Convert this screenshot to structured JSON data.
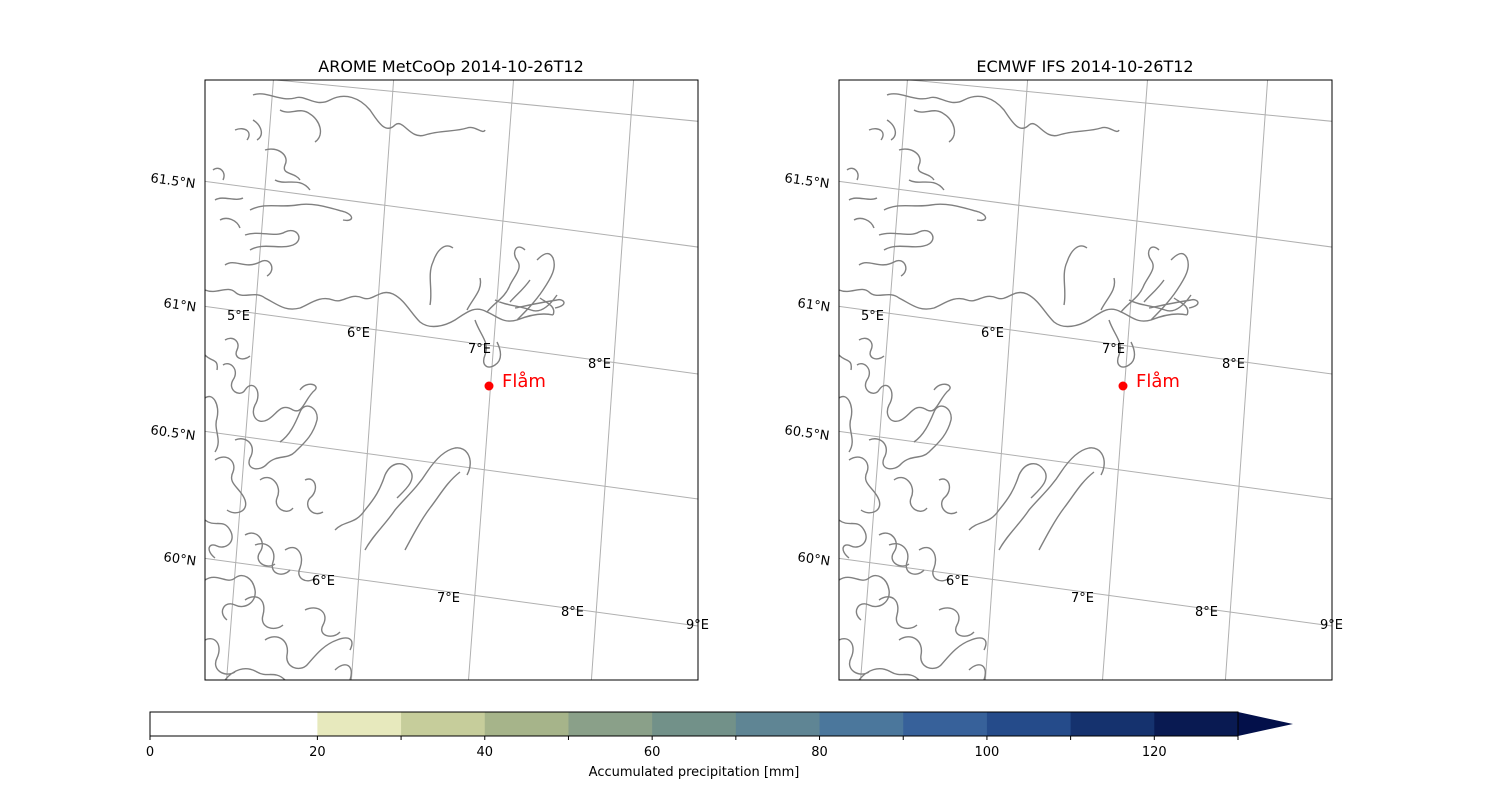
{
  "panels": [
    {
      "title": "AROME MetCoOp 2014-10-26T12",
      "lat_labels": [
        "61.5°N",
        "61°N",
        "60.5°N",
        "60°N"
      ],
      "lon_labels_upper": [
        "5°E",
        "6°E",
        "7°E",
        "8°E"
      ],
      "lon_labels_lower": [
        "6°E",
        "7°E",
        "8°E",
        "9°E"
      ],
      "marker": {
        "name": "Flåm",
        "color": "#ff0000"
      }
    },
    {
      "title": "ECMWF IFS 2014-10-26T12",
      "lat_labels": [
        "61.5°N",
        "61°N",
        "60.5°N",
        "60°N"
      ],
      "lon_labels_upper": [
        "5°E",
        "6°E",
        "7°E",
        "8°E"
      ],
      "lon_labels_lower": [
        "6°E",
        "7°E",
        "8°E",
        "9°E"
      ],
      "marker": {
        "name": "Flåm",
        "color": "#ff0000"
      }
    }
  ],
  "colorbar": {
    "label": "Accumulated precipitation [mm]",
    "bounds": [
      0,
      20,
      30,
      40,
      50,
      60,
      70,
      80,
      90,
      100,
      110,
      120,
      130
    ],
    "tick_labels": [
      "0",
      "20",
      "40",
      "60",
      "80",
      "100",
      "120"
    ],
    "colors": [
      "#ffffff",
      "#e7e9bd",
      "#c6cd9b",
      "#a6b48a",
      "#8aa089",
      "#729189",
      "#5f8594",
      "#4b779c",
      "#37619a",
      "#254b8a",
      "#15326e",
      "#091a52"
    ],
    "extend": "max",
    "extend_color": "#03104a"
  },
  "coastline_color": "#808080",
  "grid_color": "#b0b0b0"
}
